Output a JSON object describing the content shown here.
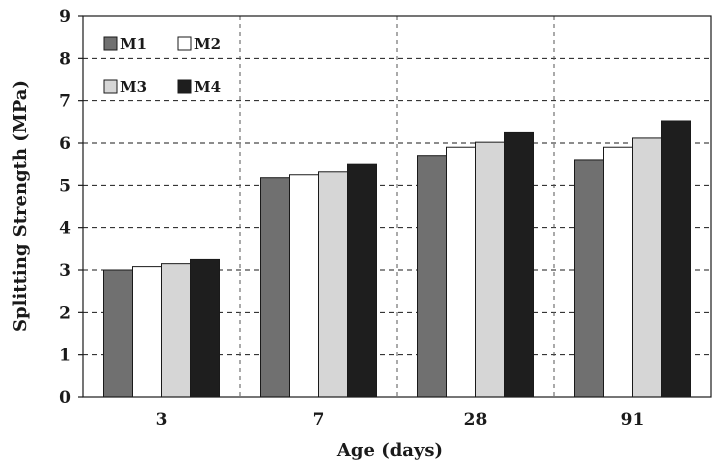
{
  "chart_data": {
    "type": "bar",
    "title": "",
    "xlabel": "Age (days)",
    "ylabel": "Splitting Strength (MPa)",
    "categories": [
      "3",
      "7",
      "28",
      "91"
    ],
    "ylim": [
      0,
      9
    ],
    "yticks": [
      "0",
      "1",
      "2",
      "3",
      "4",
      "5",
      "6",
      "7",
      "8",
      "9"
    ],
    "grid": true,
    "legend_position": "top-left",
    "series": [
      {
        "name": "M1",
        "color": "#707070",
        "values": [
          3.0,
          5.18,
          5.7,
          5.6
        ]
      },
      {
        "name": "M2",
        "color": "#ffffff",
        "values": [
          3.08,
          5.25,
          5.9,
          5.9
        ]
      },
      {
        "name": "M3",
        "color": "#d6d6d6",
        "values": [
          3.15,
          5.32,
          6.02,
          6.12
        ]
      },
      {
        "name": "M4",
        "color": "#1e1e1e",
        "values": [
          3.25,
          5.5,
          6.25,
          6.52
        ]
      }
    ]
  }
}
